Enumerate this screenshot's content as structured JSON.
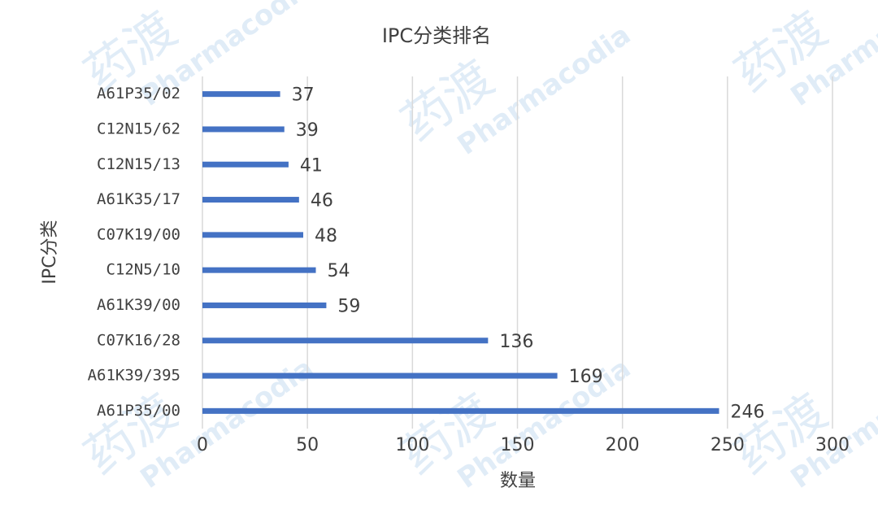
{
  "chart_data": {
    "type": "bar",
    "orientation": "horizontal",
    "title": "IPC分类排名",
    "x_label": "数量",
    "y_label": "IPC分类",
    "categories": [
      "A61P35/02",
      "C12N15/62",
      "C12N15/13",
      "A61K35/17",
      "C07K19/00",
      "C12N5/10",
      "A61K39/00",
      "C07K16/28",
      "A61K39/395",
      "A61P35/00"
    ],
    "values": [
      37,
      39,
      41,
      46,
      48,
      54,
      59,
      136,
      169,
      246
    ],
    "color": "#4472c4",
    "xlim": [
      0,
      300
    ],
    "xticks": [
      0,
      50,
      100,
      150,
      200,
      250,
      300
    ],
    "grid": true,
    "watermark": [
      "药渡",
      "Pharmacodia"
    ]
  }
}
